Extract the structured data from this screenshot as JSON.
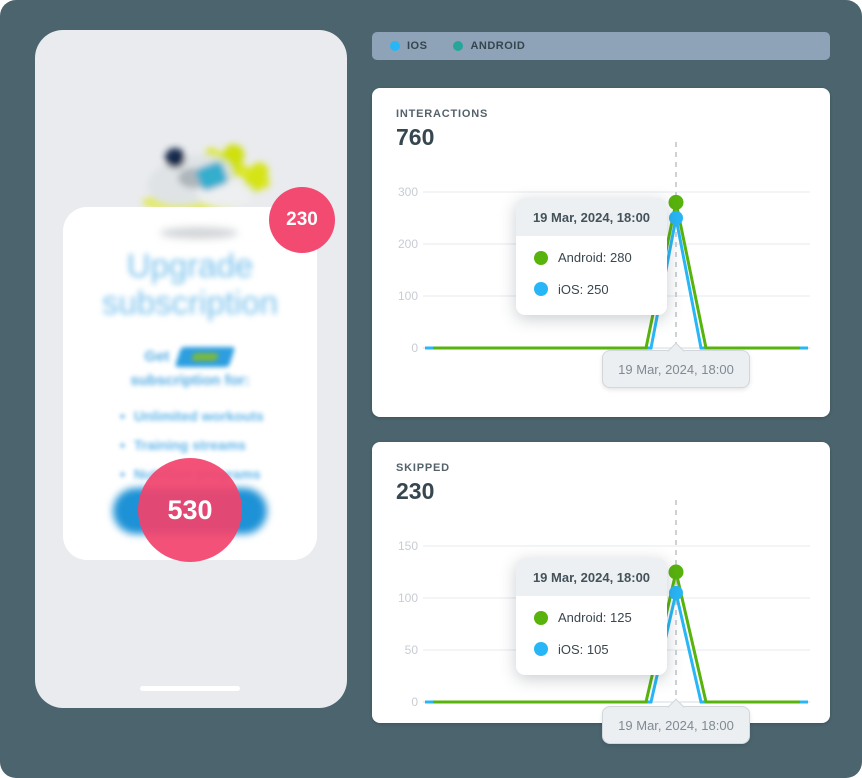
{
  "page": {
    "background": "#4B646E",
    "legend_bar_color": "#8FA3B8",
    "accent_pink": "#F3436C",
    "accent_blue": "#29B6F6",
    "accent_green": "#58B30D"
  },
  "legend": {
    "items": [
      {
        "label": "IOS",
        "color": "#29B6F6"
      },
      {
        "label": "ANDROID",
        "color": "#26A69A"
      }
    ]
  },
  "phone": {
    "interactions_badge": "230",
    "taps_badge": "530",
    "screen": {
      "heading_line1": "Upgrade",
      "heading_line2": "subscription",
      "subtext_line1": "Get",
      "subtext_line2": "subscription for:",
      "bullets": [
        "Unlimited workouts",
        "Training streams",
        "Nutrition programs"
      ]
    }
  },
  "chart_data": [
    {
      "type": "line",
      "title": "INTERACTIONS",
      "total": 760,
      "total_text": "760",
      "ylim": [
        0,
        300
      ],
      "y_ticks": [
        300,
        200,
        100,
        0
      ],
      "grid": true,
      "baseline_value": 0,
      "tooltip_date": "19 Mar, 2024, 18:00",
      "x_axis_label": "19 Mar, 2024, 18:00",
      "series": [
        {
          "name": "Android",
          "color": "#58B30D",
          "baseline": 0,
          "peak": 280
        },
        {
          "name": "iOS",
          "color": "#29B6F6",
          "baseline": 0,
          "peak": 250
        }
      ],
      "tooltip_rows": [
        {
          "text": "Android: 280",
          "color": "#58B30D"
        },
        {
          "text": "iOS: 250",
          "color": "#29B6F6"
        }
      ]
    },
    {
      "type": "line",
      "title": "SKIPPED",
      "total": 230,
      "total_text": "230",
      "ylim": [
        0,
        150
      ],
      "y_ticks": [
        150,
        100,
        50,
        0
      ],
      "grid": true,
      "baseline_value": 0,
      "tooltip_date": "19 Mar, 2024, 18:00",
      "x_axis_label": "19 Mar, 2024, 18:00",
      "series": [
        {
          "name": "Android",
          "color": "#58B30D",
          "baseline": 0,
          "peak": 125
        },
        {
          "name": "iOS",
          "color": "#29B6F6",
          "baseline": 0,
          "peak": 105
        }
      ],
      "tooltip_rows": [
        {
          "text": "Android: 125",
          "color": "#58B30D"
        },
        {
          "text": "iOS: 105",
          "color": "#29B6F6"
        }
      ]
    }
  ]
}
